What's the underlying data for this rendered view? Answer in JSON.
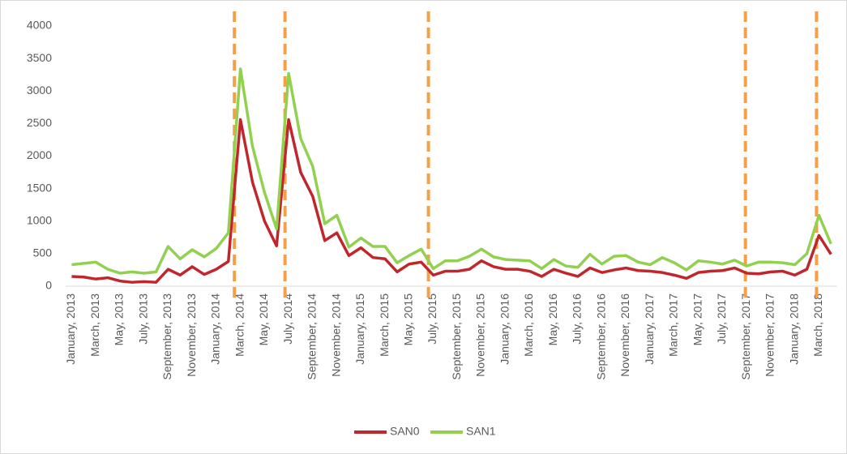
{
  "chart_data": {
    "type": "line",
    "categories": [
      "January, 2013",
      null,
      "March, 2013",
      null,
      "May, 2013",
      null,
      "July, 2013",
      null,
      "September, 2013",
      null,
      "November, 2013",
      null,
      "January, 2014",
      null,
      "March, 2014",
      null,
      "May, 2014",
      null,
      "July, 2014",
      null,
      "September, 2014",
      null,
      "November, 2014",
      null,
      "January, 2015",
      null,
      "March, 2015",
      null,
      "May, 2015",
      null,
      "July, 2015",
      null,
      "September, 2015",
      null,
      "November, 2015",
      null,
      "January, 2016",
      null,
      "March, 2016",
      null,
      "May, 2016",
      null,
      "July, 2016",
      null,
      "September, 2016",
      null,
      "November, 2016",
      null,
      "January, 2017",
      null,
      "March, 2017",
      null,
      "May, 2017",
      null,
      "July, 2017",
      null,
      "September, 2017",
      null,
      "November, 2017",
      null,
      "January, 2018",
      null,
      "March, 2018",
      null
    ],
    "series": [
      {
        "name": "SAN0",
        "color": "#c0272d",
        "values": [
          150,
          140,
          110,
          130,
          80,
          60,
          70,
          60,
          260,
          170,
          300,
          180,
          260,
          380,
          2560,
          1600,
          1000,
          620,
          2560,
          1750,
          1380,
          700,
          820,
          470,
          590,
          440,
          420,
          220,
          340,
          370,
          170,
          230,
          230,
          260,
          390,
          300,
          260,
          260,
          230,
          150,
          260,
          200,
          150,
          280,
          210,
          250,
          280,
          240,
          230,
          210,
          170,
          120,
          210,
          230,
          240,
          280,
          200,
          190,
          220,
          230,
          170,
          260,
          780,
          490
        ]
      },
      {
        "name": "SAN1",
        "color": "#92d050",
        "values": [
          330,
          350,
          370,
          260,
          200,
          220,
          200,
          220,
          610,
          420,
          560,
          450,
          580,
          820,
          3340,
          2150,
          1440,
          880,
          3270,
          2270,
          1840,
          960,
          1090,
          600,
          740,
          610,
          610,
          360,
          470,
          570,
          270,
          390,
          390,
          460,
          570,
          450,
          410,
          400,
          390,
          270,
          410,
          310,
          290,
          490,
          340,
          460,
          470,
          370,
          330,
          440,
          360,
          250,
          390,
          370,
          340,
          400,
          310,
          370,
          370,
          360,
          330,
          500,
          1090,
          650
        ]
      }
    ],
    "event_lines": [
      13.5,
      17.7,
      29.6,
      55.9,
      61.8
    ],
    "event_color": "#f4a04a",
    "ylim": [
      0,
      4000
    ],
    "yticks": [
      0,
      500,
      1000,
      1500,
      2000,
      2500,
      3000,
      3500,
      4000
    ],
    "grid": false,
    "legend": "bottom"
  }
}
